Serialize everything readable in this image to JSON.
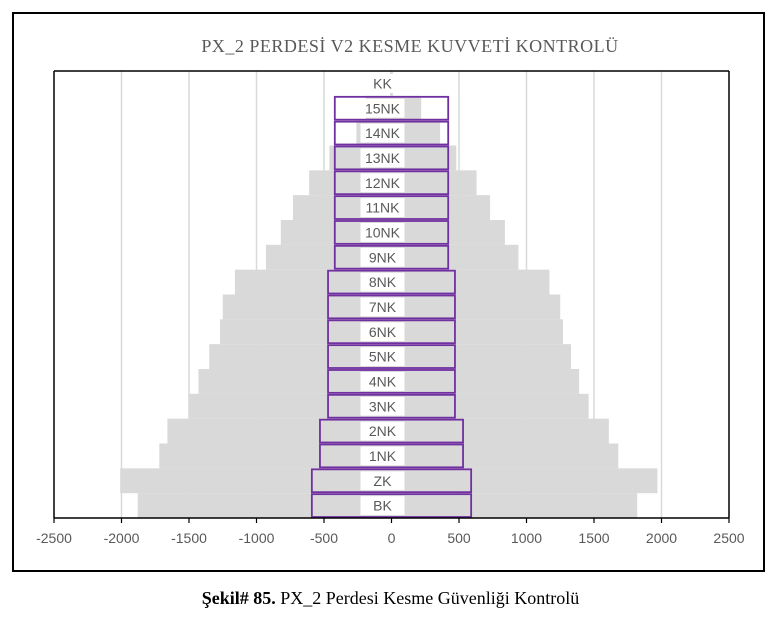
{
  "chart_data": {
    "type": "bar",
    "orientation": "horizontal",
    "title": "PX_2 PERDESİ V2 KESME KUVVETİ KONTROLÜ",
    "categories": [
      "KK",
      "15NK",
      "14NK",
      "13NK",
      "12NK",
      "11NK",
      "10NK",
      "9NK",
      "8NK",
      "7NK",
      "6NK",
      "5NK",
      "4NK",
      "3NK",
      "2NK",
      "1NK",
      "ZK",
      "BK"
    ],
    "series": [
      {
        "style": "gray-filled",
        "color": "#d9d9d9",
        "values": [
          [
            -10,
            10
          ],
          [
            -190,
            220
          ],
          [
            -260,
            360
          ],
          [
            -460,
            480
          ],
          [
            -610,
            630
          ],
          [
            -730,
            730
          ],
          [
            -820,
            840
          ],
          [
            -930,
            940
          ],
          [
            -1160,
            1170
          ],
          [
            -1250,
            1250
          ],
          [
            -1270,
            1270
          ],
          [
            -1350,
            1330
          ],
          [
            -1430,
            1390
          ],
          [
            -1500,
            1460
          ],
          [
            -1660,
            1610
          ],
          [
            -1720,
            1680
          ],
          [
            -2010,
            1970
          ],
          [
            -1880,
            1820
          ]
        ]
      },
      {
        "style": "purple-outline",
        "color": "#7030a0",
        "values": [
          [
            0,
            0
          ],
          [
            -420,
            420
          ],
          [
            -420,
            420
          ],
          [
            -420,
            420
          ],
          [
            -420,
            420
          ],
          [
            -420,
            420
          ],
          [
            -420,
            420
          ],
          [
            -420,
            420
          ],
          [
            -470,
            470
          ],
          [
            -470,
            470
          ],
          [
            -470,
            470
          ],
          [
            -470,
            470
          ],
          [
            -470,
            470
          ],
          [
            -470,
            470
          ],
          [
            -530,
            530
          ],
          [
            -530,
            530
          ],
          [
            -590,
            590
          ],
          [
            -590,
            590
          ]
        ]
      }
    ],
    "xlim": [
      -2500,
      2500
    ],
    "xticks": [
      -2500,
      -2000,
      -1500,
      -1000,
      -500,
      0,
      500,
      1000,
      1500,
      2000,
      2500
    ],
    "grid": "vertical",
    "xlabel": "",
    "ylabel": ""
  },
  "caption": {
    "label": "Şekil# 85.",
    "text": " PX_2 Perdesi Kesme Güvenliği Kontrolü"
  }
}
